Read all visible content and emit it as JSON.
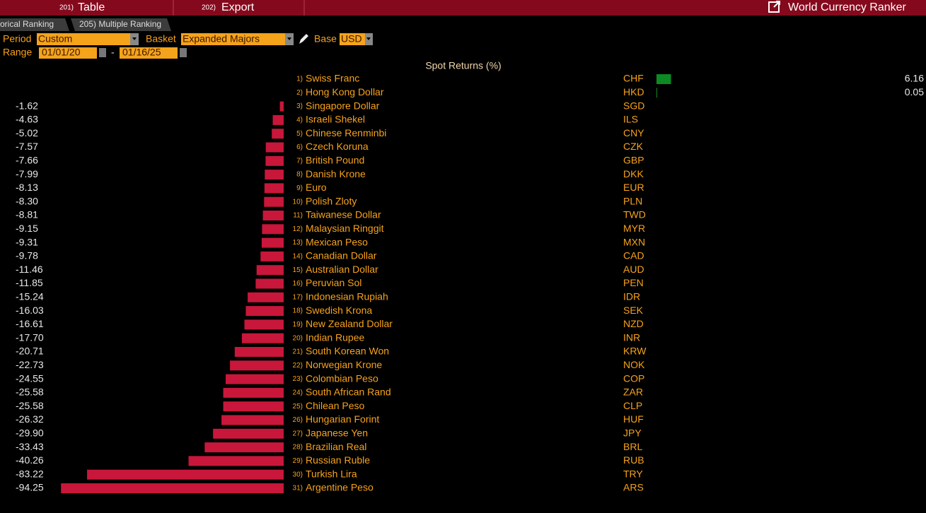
{
  "toolbar": {
    "buttons": [
      {
        "num": "201)",
        "label": "Table"
      },
      {
        "num": "202)",
        "label": "Export"
      }
    ],
    "app_title": "World Currency Ranker"
  },
  "tabs": [
    "orical Ranking",
    "205) Multiple Ranking"
  ],
  "controls": {
    "period_label": "Period",
    "period": "Custom",
    "basket_label": "Basket",
    "basket": "Expanded Majors",
    "base_label": "Base",
    "base": "USD",
    "range_label": "Range",
    "start": "01/01/20",
    "separator": "-",
    "end": "01/16/25"
  },
  "chart_data": {
    "type": "bar",
    "title": "Spot Returns (%)",
    "ranks": [
      "1)",
      "2)",
      "3)",
      "4)",
      "5)",
      "6)",
      "7)",
      "8)",
      "9)",
      "10)",
      "11)",
      "12)",
      "13)",
      "14)",
      "15)",
      "16)",
      "17)",
      "18)",
      "19)",
      "20)",
      "21)",
      "22)",
      "23)",
      "24)",
      "25)",
      "26)",
      "27)",
      "28)",
      "29)",
      "30)",
      "31)"
    ],
    "categories": [
      "Swiss Franc",
      "Hong Kong Dollar",
      "Singapore Dollar",
      "Israeli Shekel",
      "Chinese Renminbi",
      "Czech Koruna",
      "British Pound",
      "Danish Krone",
      "Euro",
      "Polish Zloty",
      "Taiwanese Dollar",
      "Malaysian Ringgit",
      "Mexican Peso",
      "Canadian Dollar",
      "Australian Dollar",
      "Peruvian Sol",
      "Indonesian Rupiah",
      "Swedish Krona",
      "New Zealand Dollar",
      "Indian Rupee",
      "South Korean Won",
      "Norwegian Krone",
      "Colombian Peso",
      "South African Rand",
      "Chilean Peso",
      "Hungarian Forint",
      "Japanese Yen",
      "Brazilian Real",
      "Russian Ruble",
      "Turkish Lira",
      "Argentine Peso"
    ],
    "codes": [
      "CHF",
      "HKD",
      "SGD",
      "ILS",
      "CNY",
      "CZK",
      "GBP",
      "DKK",
      "EUR",
      "PLN",
      "TWD",
      "MYR",
      "MXN",
      "CAD",
      "AUD",
      "PEN",
      "IDR",
      "SEK",
      "NZD",
      "INR",
      "KRW",
      "NOK",
      "COP",
      "ZAR",
      "CLP",
      "HUF",
      "JPY",
      "BRL",
      "RUB",
      "TRY",
      "ARS"
    ],
    "values": [
      6.16,
      0.05,
      -1.62,
      -4.63,
      -5.02,
      -7.57,
      -7.66,
      -7.99,
      -8.13,
      -8.3,
      -8.81,
      -9.15,
      -9.31,
      -9.78,
      -11.46,
      -11.85,
      -15.24,
      -16.03,
      -16.61,
      -17.7,
      -20.71,
      -22.73,
      -24.55,
      -25.58,
      -25.58,
      -26.32,
      -29.9,
      -33.43,
      -40.26,
      -83.22,
      -94.25
    ],
    "value_labels": [
      "6.16",
      "0.05",
      "-1.62",
      "-4.63",
      "-5.02",
      "-7.57",
      "-7.66",
      "-7.99",
      "-8.13",
      "-8.30",
      "-8.81",
      "-9.15",
      "-9.31",
      "-9.78",
      "-11.46",
      "-11.85",
      "-15.24",
      "-16.03",
      "-16.61",
      "-17.70",
      "-20.71",
      "-22.73",
      "-24.55",
      "-25.58",
      "-25.58",
      "-26.32",
      "-29.90",
      "-33.43",
      "-40.26",
      "-83.22",
      "-94.25"
    ],
    "positive_color": "#0d8a24",
    "negative_color": "#c8173a"
  }
}
